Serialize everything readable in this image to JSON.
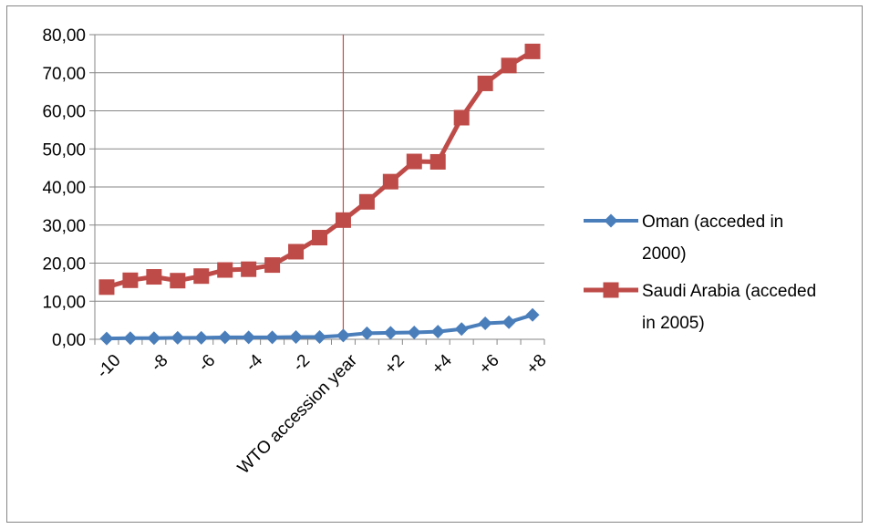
{
  "chart_data": {
    "type": "line",
    "title": "",
    "xlabel": "",
    "ylabel": "",
    "categories": [
      "-10",
      "",
      "-8",
      "",
      "-6",
      "",
      "-4",
      "",
      "-2",
      "",
      "WTO accession year",
      "",
      "+2",
      "",
      "+4",
      "",
      "+6",
      "",
      "+8"
    ],
    "ylim": [
      0,
      80
    ],
    "yticks": [
      0,
      10,
      20,
      30,
      40,
      50,
      60,
      70,
      80
    ],
    "ytick_labels": [
      "0,00",
      "10,00",
      "20,00",
      "30,00",
      "40,00",
      "50,00",
      "60,00",
      "70,00",
      "80,00"
    ],
    "grid": true,
    "legend_position": "right",
    "reference_line_category": "WTO accession year",
    "series": [
      {
        "name": "Oman (acceded in 2000)",
        "legend_lines": [
          "Oman (acceded in",
          "2000)"
        ],
        "color": "#4a7ebb",
        "marker": "diamond",
        "values": [
          0.2,
          0.3,
          0.3,
          0.4,
          0.4,
          0.5,
          0.5,
          0.5,
          0.6,
          0.6,
          1.0,
          1.6,
          1.7,
          1.8,
          2.0,
          2.7,
          4.2,
          4.5,
          6.4
        ]
      },
      {
        "name": "Saudi Arabia (acceded in 2005)",
        "legend_lines": [
          "Saudi Arabia (acceded",
          "in 2005)"
        ],
        "color": "#be4b48",
        "marker": "square",
        "values": [
          13.7,
          15.5,
          16.4,
          15.4,
          16.6,
          18.2,
          18.4,
          19.5,
          23.0,
          26.7,
          31.3,
          36.1,
          41.4,
          46.7,
          46.6,
          58.2,
          67.2,
          71.9,
          75.6
        ]
      }
    ]
  }
}
